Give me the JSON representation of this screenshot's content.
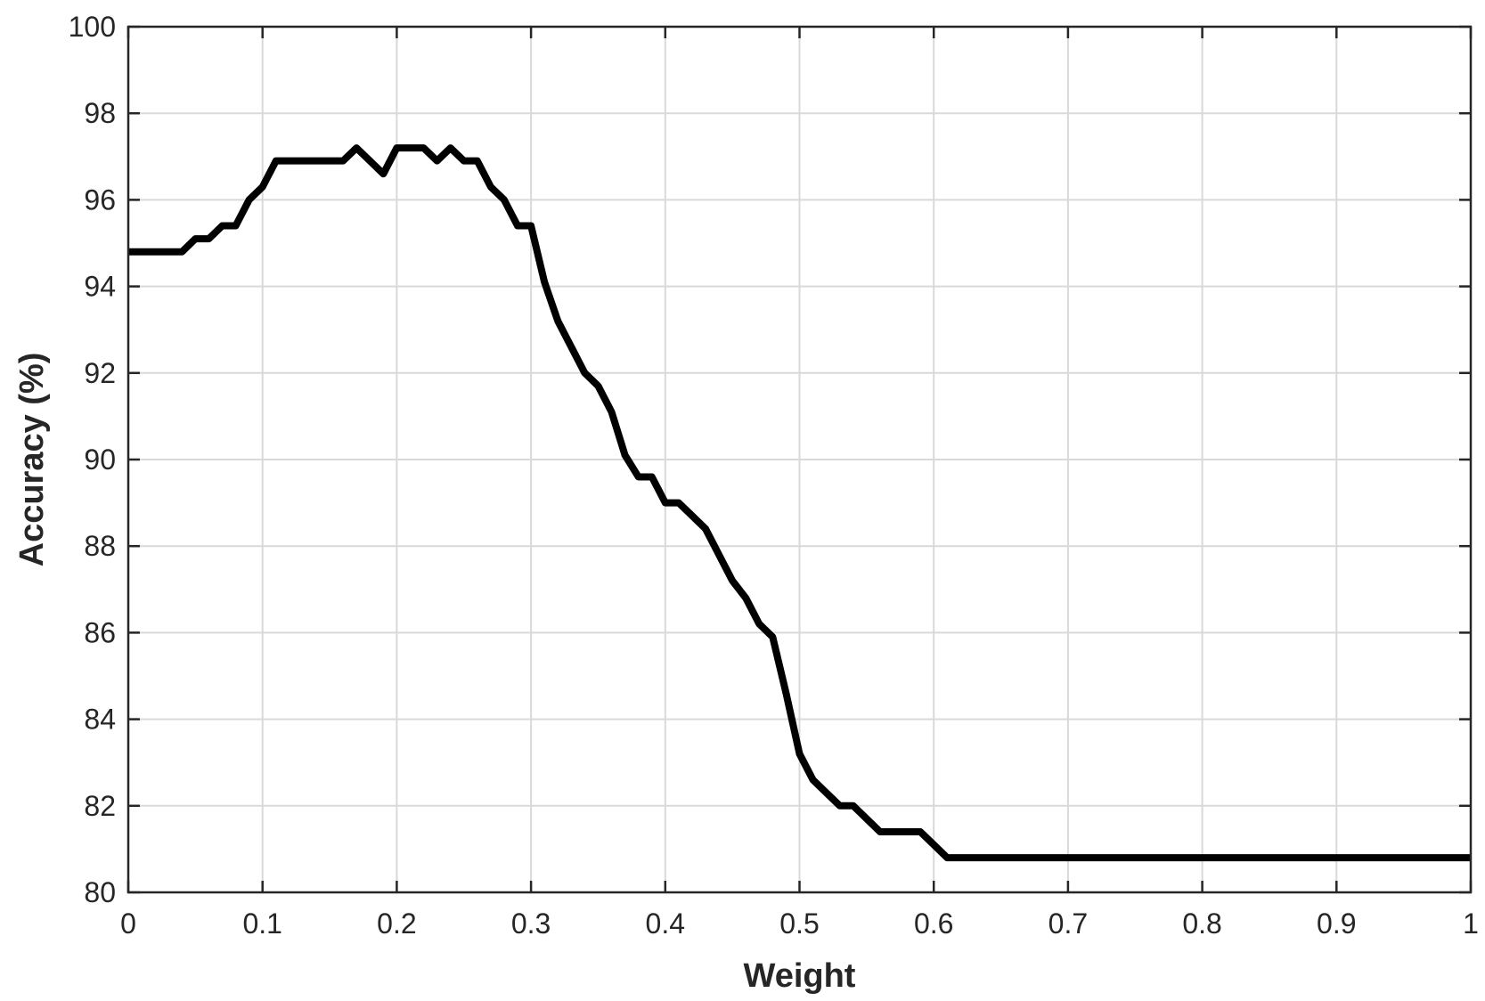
{
  "chart_data": {
    "type": "line",
    "title": "",
    "xlabel": "Weight",
    "ylabel": "Accuracy (%)",
    "xlim": [
      0,
      1
    ],
    "ylim": [
      80,
      100
    ],
    "xticks": [
      "0",
      "0.1",
      "0.2",
      "0.3",
      "0.4",
      "0.5",
      "0.6",
      "0.7",
      "0.8",
      "0.9",
      "1"
    ],
    "xtick_values": [
      0,
      0.1,
      0.2,
      0.3,
      0.4,
      0.5,
      0.6,
      0.7,
      0.8,
      0.9,
      1
    ],
    "yticks": [
      "80",
      "82",
      "84",
      "86",
      "88",
      "90",
      "92",
      "94",
      "96",
      "98",
      "100"
    ],
    "ytick_values": [
      80,
      82,
      84,
      86,
      88,
      90,
      92,
      94,
      96,
      98,
      100
    ],
    "grid": true,
    "box": true,
    "colors": {
      "line": "#000000",
      "grid": "#d9d9d9",
      "axes": "#262626"
    },
    "series": [
      {
        "x": [
          0,
          0.01,
          0.02,
          0.03,
          0.04,
          0.05,
          0.06,
          0.07,
          0.08,
          0.09,
          0.1,
          0.11,
          0.12,
          0.13,
          0.14,
          0.15,
          0.16,
          0.17,
          0.18,
          0.19,
          0.2,
          0.21,
          0.22,
          0.23,
          0.24,
          0.25,
          0.26,
          0.27,
          0.28,
          0.29,
          0.3,
          0.31,
          0.32,
          0.33,
          0.34,
          0.35,
          0.36,
          0.37,
          0.38,
          0.39,
          0.4,
          0.41,
          0.42,
          0.43,
          0.44,
          0.45,
          0.46,
          0.47,
          0.48,
          0.49,
          0.5,
          0.51,
          0.52,
          0.53,
          0.54,
          0.55,
          0.56,
          0.57,
          0.58,
          0.59,
          0.6,
          0.61,
          0.62,
          0.63,
          0.64,
          0.65,
          0.66,
          0.67,
          0.68,
          0.69,
          0.7,
          0.71,
          0.72,
          0.73,
          0.74,
          0.75,
          0.76,
          0.77,
          0.78,
          0.79,
          0.8,
          0.81,
          0.82,
          0.83,
          0.84,
          0.85,
          0.86,
          0.87,
          0.88,
          0.89,
          0.9,
          0.91,
          0.92,
          0.93,
          0.94,
          0.95,
          0.96,
          0.97,
          0.98,
          0.99,
          1.0
        ],
        "y": [
          94.8,
          94.8,
          94.8,
          94.8,
          94.8,
          95.1,
          95.1,
          95.4,
          95.4,
          96.0,
          96.3,
          96.9,
          96.9,
          96.9,
          96.9,
          96.9,
          96.9,
          97.2,
          96.9,
          96.6,
          97.2,
          97.2,
          97.2,
          96.9,
          97.2,
          96.9,
          96.9,
          96.3,
          96.0,
          95.4,
          95.4,
          94.1,
          93.2,
          92.6,
          92.0,
          91.7,
          91.1,
          90.1,
          89.6,
          89.6,
          89.0,
          89.0,
          88.7,
          88.4,
          87.8,
          87.2,
          86.8,
          86.2,
          85.9,
          84.6,
          83.2,
          82.6,
          82.3,
          82.0,
          82.0,
          81.7,
          81.4,
          81.4,
          81.4,
          81.4,
          81.1,
          80.8,
          80.8,
          80.8,
          80.8,
          80.8,
          80.8,
          80.8,
          80.8,
          80.8,
          80.8,
          80.8,
          80.8,
          80.8,
          80.8,
          80.8,
          80.8,
          80.8,
          80.8,
          80.8,
          80.8,
          80.8,
          80.8,
          80.8,
          80.8,
          80.8,
          80.8,
          80.8,
          80.8,
          80.8,
          80.8,
          80.8,
          80.8,
          80.8,
          80.8,
          80.8,
          80.8,
          80.8,
          80.8,
          80.8,
          80.8
        ]
      }
    ]
  }
}
